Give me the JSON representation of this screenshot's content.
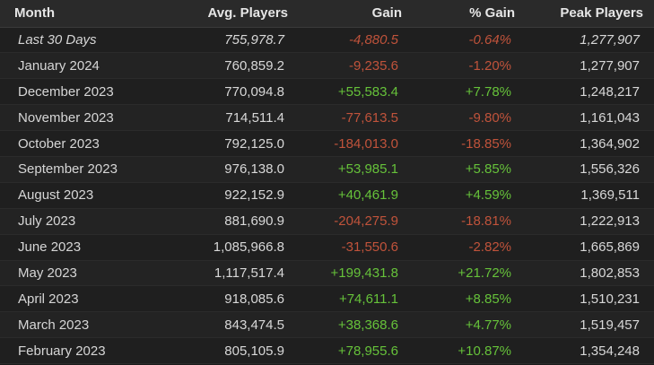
{
  "columns": {
    "month": "Month",
    "avg": "Avg. Players",
    "gain": "Gain",
    "pct": "% Gain",
    "peak": "Peak Players"
  },
  "colors": {
    "negative": "#c0533b",
    "positive": "#66c23a",
    "text": "#d8d8d8",
    "header_bg": "#2a2a2a",
    "row_bg": "#1f1f1f"
  },
  "rows": [
    {
      "month": "Last 30 Days",
      "avg": "755,978.7",
      "gain": "-4,880.5",
      "pct": "-0.64%",
      "peak": "1,277,907",
      "trend": "neg",
      "italic": true
    },
    {
      "month": "January 2024",
      "avg": "760,859.2",
      "gain": "-9,235.6",
      "pct": "-1.20%",
      "peak": "1,277,907",
      "trend": "neg"
    },
    {
      "month": "December 2023",
      "avg": "770,094.8",
      "gain": "+55,583.4",
      "pct": "+7.78%",
      "peak": "1,248,217",
      "trend": "pos"
    },
    {
      "month": "November 2023",
      "avg": "714,511.4",
      "gain": "-77,613.5",
      "pct": "-9.80%",
      "peak": "1,161,043",
      "trend": "neg"
    },
    {
      "month": "October 2023",
      "avg": "792,125.0",
      "gain": "-184,013.0",
      "pct": "-18.85%",
      "peak": "1,364,902",
      "trend": "neg"
    },
    {
      "month": "September 2023",
      "avg": "976,138.0",
      "gain": "+53,985.1",
      "pct": "+5.85%",
      "peak": "1,556,326",
      "trend": "pos"
    },
    {
      "month": "August 2023",
      "avg": "922,152.9",
      "gain": "+40,461.9",
      "pct": "+4.59%",
      "peak": "1,369,511",
      "trend": "pos"
    },
    {
      "month": "July 2023",
      "avg": "881,690.9",
      "gain": "-204,275.9",
      "pct": "-18.81%",
      "peak": "1,222,913",
      "trend": "neg"
    },
    {
      "month": "June 2023",
      "avg": "1,085,966.8",
      "gain": "-31,550.6",
      "pct": "-2.82%",
      "peak": "1,665,869",
      "trend": "neg"
    },
    {
      "month": "May 2023",
      "avg": "1,117,517.4",
      "gain": "+199,431.8",
      "pct": "+21.72%",
      "peak": "1,802,853",
      "trend": "pos"
    },
    {
      "month": "April 2023",
      "avg": "918,085.6",
      "gain": "+74,611.1",
      "pct": "+8.85%",
      "peak": "1,510,231",
      "trend": "pos"
    },
    {
      "month": "March 2023",
      "avg": "843,474.5",
      "gain": "+38,368.6",
      "pct": "+4.77%",
      "peak": "1,519,457",
      "trend": "pos"
    },
    {
      "month": "February 2023",
      "avg": "805,105.9",
      "gain": "+78,955.6",
      "pct": "+10.87%",
      "peak": "1,354,248",
      "trend": "pos"
    }
  ]
}
